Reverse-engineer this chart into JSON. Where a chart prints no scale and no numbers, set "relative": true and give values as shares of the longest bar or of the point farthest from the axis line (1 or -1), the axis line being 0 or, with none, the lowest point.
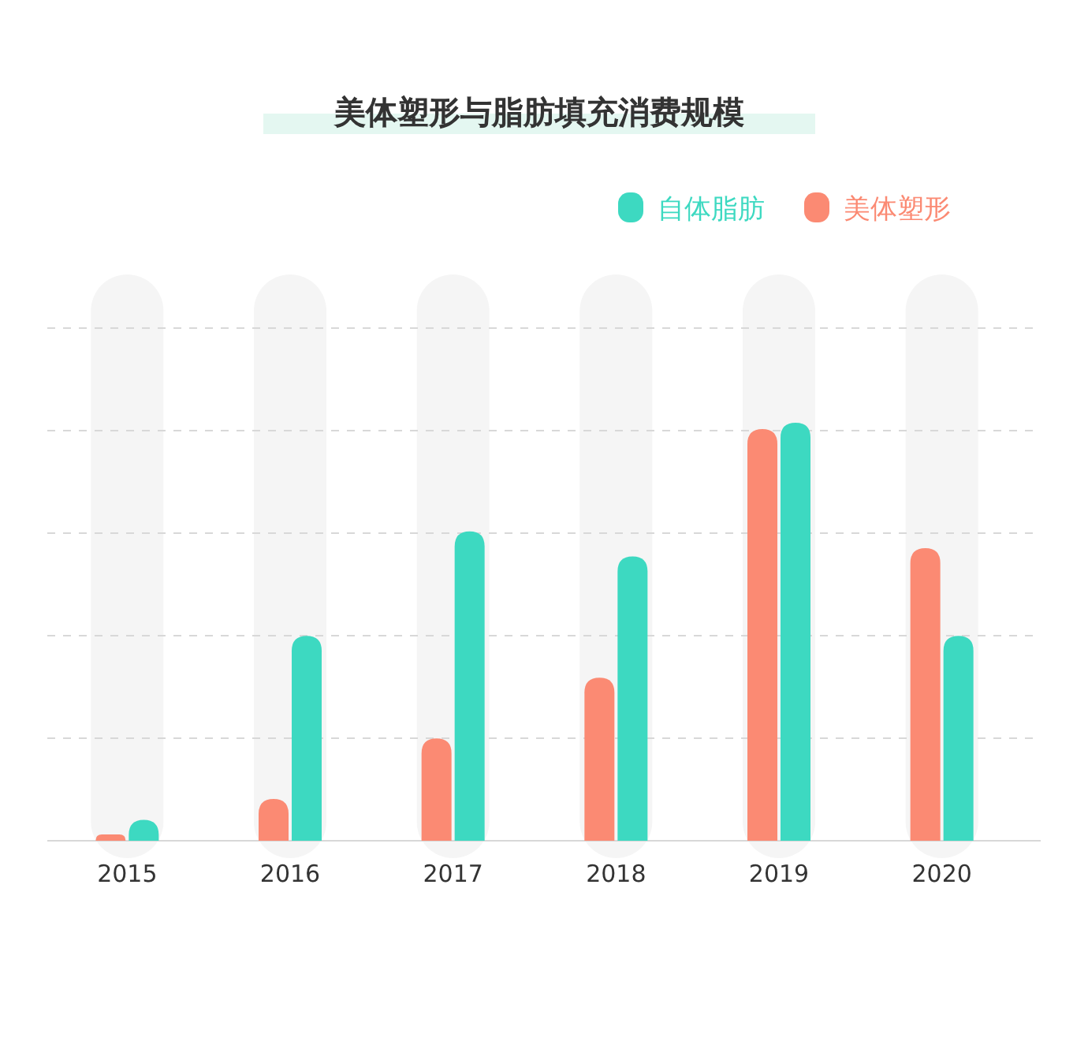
{
  "chart_data": {
    "type": "bar",
    "title": "美体塑形与脂肪填充消费规模",
    "categories": [
      "2015",
      "2016",
      "2017",
      "2018",
      "2019",
      "2020"
    ],
    "relative": true,
    "grid": true,
    "legend": "top right",
    "series": [
      {
        "name": "美体塑形",
        "color": "#fb8a73",
        "values": [
          0.015,
          0.1,
          0.245,
          0.39,
          0.985,
          0.7
        ]
      },
      {
        "name": "自体脂肪",
        "color": "#3dd9c1",
        "values": [
          0.05,
          0.49,
          0.74,
          0.68,
          1,
          0.49
        ]
      }
    ]
  }
}
